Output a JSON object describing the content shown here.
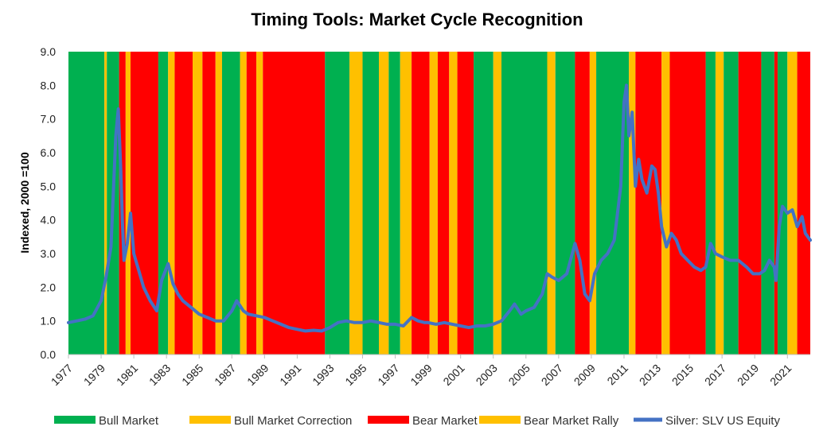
{
  "chart_data": {
    "type": "line",
    "title": "Timing Tools: Market Cycle Recognition",
    "ylabel": "Indexed, 2000 =100",
    "xlabel": "",
    "ylim": [
      0,
      9
    ],
    "xlim": [
      1977,
      2022.4
    ],
    "yticks": [
      "0.0",
      "1.0",
      "2.0",
      "3.0",
      "4.0",
      "5.0",
      "6.0",
      "7.0",
      "8.0",
      "9.0"
    ],
    "xticks": [
      "1977",
      "1979",
      "1981",
      "1983",
      "1985",
      "1987",
      "1989",
      "1991",
      "1993",
      "1995",
      "1997",
      "1999",
      "2001",
      "2003",
      "2005",
      "2007",
      "2009",
      "2011",
      "2013",
      "2015",
      "2017",
      "2019",
      "2021"
    ],
    "grid": false,
    "legend_position": "bottom",
    "regime_colors": {
      "bull": "#00B050",
      "correction": "#FFC000",
      "bear": "#FF0000",
      "rally": "#FFC000"
    },
    "legend": [
      {
        "key": "bull",
        "label": "Bull Market",
        "color": "#00B050",
        "kind": "box"
      },
      {
        "key": "correction",
        "label": "Bull Market Correction",
        "color": "#FFC000",
        "kind": "box"
      },
      {
        "key": "bear",
        "label": "Bear Market",
        "color": "#FF0000",
        "kind": "box"
      },
      {
        "key": "rally",
        "label": "Bear Market Rally",
        "color": "#FFC000",
        "kind": "box"
      },
      {
        "key": "silver",
        "label": "Silver: SLV US Equity",
        "color": "#4472C4",
        "kind": "line"
      }
    ],
    "regimes": [
      {
        "start": 1977.0,
        "end": 1979.2,
        "state": "bull"
      },
      {
        "start": 1979.2,
        "end": 1979.35,
        "state": "correction"
      },
      {
        "start": 1979.35,
        "end": 1980.1,
        "state": "bull"
      },
      {
        "start": 1980.1,
        "end": 1980.5,
        "state": "bear"
      },
      {
        "start": 1980.5,
        "end": 1980.8,
        "state": "rally"
      },
      {
        "start": 1980.8,
        "end": 1982.5,
        "state": "bear"
      },
      {
        "start": 1982.5,
        "end": 1983.1,
        "state": "bull"
      },
      {
        "start": 1983.1,
        "end": 1983.5,
        "state": "correction"
      },
      {
        "start": 1983.5,
        "end": 1984.6,
        "state": "bear"
      },
      {
        "start": 1984.6,
        "end": 1985.2,
        "state": "rally"
      },
      {
        "start": 1985.2,
        "end": 1986.0,
        "state": "bear"
      },
      {
        "start": 1986.0,
        "end": 1986.4,
        "state": "rally"
      },
      {
        "start": 1986.4,
        "end": 1987.5,
        "state": "bull"
      },
      {
        "start": 1987.5,
        "end": 1987.9,
        "state": "correction"
      },
      {
        "start": 1987.9,
        "end": 1988.5,
        "state": "bear"
      },
      {
        "start": 1988.5,
        "end": 1988.9,
        "state": "rally"
      },
      {
        "start": 1988.9,
        "end": 1992.7,
        "state": "bear"
      },
      {
        "start": 1992.7,
        "end": 1994.2,
        "state": "bull"
      },
      {
        "start": 1994.2,
        "end": 1995.0,
        "state": "correction"
      },
      {
        "start": 1995.0,
        "end": 1996.0,
        "state": "bull"
      },
      {
        "start": 1996.0,
        "end": 1996.6,
        "state": "correction"
      },
      {
        "start": 1996.6,
        "end": 1997.3,
        "state": "bull"
      },
      {
        "start": 1997.3,
        "end": 1998.0,
        "state": "correction"
      },
      {
        "start": 1998.0,
        "end": 1999.1,
        "state": "bear"
      },
      {
        "start": 1999.1,
        "end": 1999.6,
        "state": "rally"
      },
      {
        "start": 1999.6,
        "end": 2000.3,
        "state": "bear"
      },
      {
        "start": 2000.3,
        "end": 2000.8,
        "state": "rally"
      },
      {
        "start": 2000.8,
        "end": 2001.8,
        "state": "bear"
      },
      {
        "start": 2001.8,
        "end": 2003.0,
        "state": "bull"
      },
      {
        "start": 2003.0,
        "end": 2003.5,
        "state": "correction"
      },
      {
        "start": 2003.5,
        "end": 2006.3,
        "state": "bull"
      },
      {
        "start": 2006.3,
        "end": 2006.8,
        "state": "correction"
      },
      {
        "start": 2006.8,
        "end": 2008.0,
        "state": "bull"
      },
      {
        "start": 2008.0,
        "end": 2008.9,
        "state": "bear"
      },
      {
        "start": 2008.9,
        "end": 2009.3,
        "state": "rally"
      },
      {
        "start": 2009.3,
        "end": 2011.3,
        "state": "bull"
      },
      {
        "start": 2011.3,
        "end": 2011.7,
        "state": "correction"
      },
      {
        "start": 2011.7,
        "end": 2013.3,
        "state": "bear"
      },
      {
        "start": 2013.3,
        "end": 2013.8,
        "state": "rally"
      },
      {
        "start": 2013.8,
        "end": 2016.0,
        "state": "bear"
      },
      {
        "start": 2016.0,
        "end": 2016.6,
        "state": "bull"
      },
      {
        "start": 2016.6,
        "end": 2017.1,
        "state": "correction"
      },
      {
        "start": 2017.1,
        "end": 2018.0,
        "state": "bull"
      },
      {
        "start": 2018.0,
        "end": 2019.4,
        "state": "bear"
      },
      {
        "start": 2019.4,
        "end": 2020.2,
        "state": "bull"
      },
      {
        "start": 2020.2,
        "end": 2020.4,
        "state": "bear"
      },
      {
        "start": 2020.4,
        "end": 2021.0,
        "state": "bull"
      },
      {
        "start": 2021.0,
        "end": 2021.6,
        "state": "correction"
      },
      {
        "start": 2021.6,
        "end": 2022.4,
        "state": "bear"
      }
    ],
    "series": [
      {
        "name": "Silver: SLV US Equity",
        "color": "#4472C4",
        "x": [
          1977.0,
          1977.5,
          1978.0,
          1978.5,
          1979.0,
          1979.3,
          1979.6,
          1979.9,
          1980.05,
          1980.2,
          1980.3,
          1980.4,
          1980.6,
          1980.8,
          1981.0,
          1981.3,
          1981.6,
          1982.0,
          1982.4,
          1982.7,
          1983.1,
          1983.4,
          1983.7,
          1984.0,
          1984.5,
          1985.0,
          1985.5,
          1986.0,
          1986.5,
          1987.0,
          1987.3,
          1987.7,
          1988.0,
          1988.5,
          1989.0,
          1989.5,
          1990.0,
          1990.5,
          1991.0,
          1991.5,
          1992.0,
          1992.5,
          1993.0,
          1993.5,
          1994.0,
          1994.5,
          1995.0,
          1995.5,
          1996.0,
          1996.5,
          1997.0,
          1997.5,
          1998.0,
          1998.4,
          1998.8,
          1999.0,
          1999.5,
          2000.0,
          2000.5,
          2001.0,
          2001.5,
          2002.0,
          2002.5,
          2003.0,
          2003.5,
          2004.0,
          2004.3,
          2004.7,
          2005.0,
          2005.5,
          2006.0,
          2006.3,
          2006.6,
          2007.0,
          2007.5,
          2008.0,
          2008.3,
          2008.6,
          2008.9,
          2009.2,
          2009.6,
          2010.0,
          2010.4,
          2010.8,
          2011.0,
          2011.15,
          2011.3,
          2011.5,
          2011.7,
          2011.9,
          2012.1,
          2012.4,
          2012.7,
          2012.9,
          2013.1,
          2013.3,
          2013.6,
          2013.9,
          2014.2,
          2014.5,
          2014.9,
          2015.3,
          2015.7,
          2016.0,
          2016.3,
          2016.6,
          2017.0,
          2017.5,
          2018.0,
          2018.5,
          2018.9,
          2019.3,
          2019.6,
          2019.9,
          2020.2,
          2020.3,
          2020.5,
          2020.7,
          2021.0,
          2021.3,
          2021.6,
          2021.9,
          2022.1,
          2022.4
        ],
        "y": [
          0.95,
          1.0,
          1.05,
          1.15,
          1.6,
          2.3,
          3.2,
          6.5,
          7.3,
          5.5,
          4.0,
          2.8,
          3.3,
          4.2,
          3.0,
          2.5,
          2.0,
          1.6,
          1.3,
          2.2,
          2.7,
          2.1,
          1.8,
          1.6,
          1.4,
          1.2,
          1.1,
          1.0,
          1.0,
          1.3,
          1.6,
          1.3,
          1.2,
          1.15,
          1.1,
          1.0,
          0.9,
          0.8,
          0.75,
          0.7,
          0.72,
          0.7,
          0.8,
          0.95,
          1.0,
          0.95,
          0.95,
          1.0,
          0.95,
          0.9,
          0.9,
          0.85,
          1.1,
          1.0,
          0.95,
          0.95,
          0.9,
          0.95,
          0.9,
          0.85,
          0.8,
          0.85,
          0.85,
          0.9,
          1.0,
          1.3,
          1.5,
          1.2,
          1.3,
          1.4,
          1.8,
          2.4,
          2.3,
          2.2,
          2.4,
          3.3,
          2.8,
          1.8,
          1.6,
          2.4,
          2.8,
          3.0,
          3.4,
          5.0,
          7.5,
          8.0,
          6.5,
          7.2,
          5.0,
          5.8,
          5.2,
          4.8,
          5.6,
          5.5,
          4.8,
          3.8,
          3.2,
          3.6,
          3.4,
          3.0,
          2.8,
          2.6,
          2.5,
          2.6,
          3.3,
          3.0,
          2.9,
          2.8,
          2.8,
          2.6,
          2.4,
          2.4,
          2.5,
          2.8,
          2.6,
          2.2,
          3.8,
          4.4,
          4.2,
          4.3,
          3.8,
          4.1,
          3.6,
          3.4
        ]
      }
    ]
  }
}
